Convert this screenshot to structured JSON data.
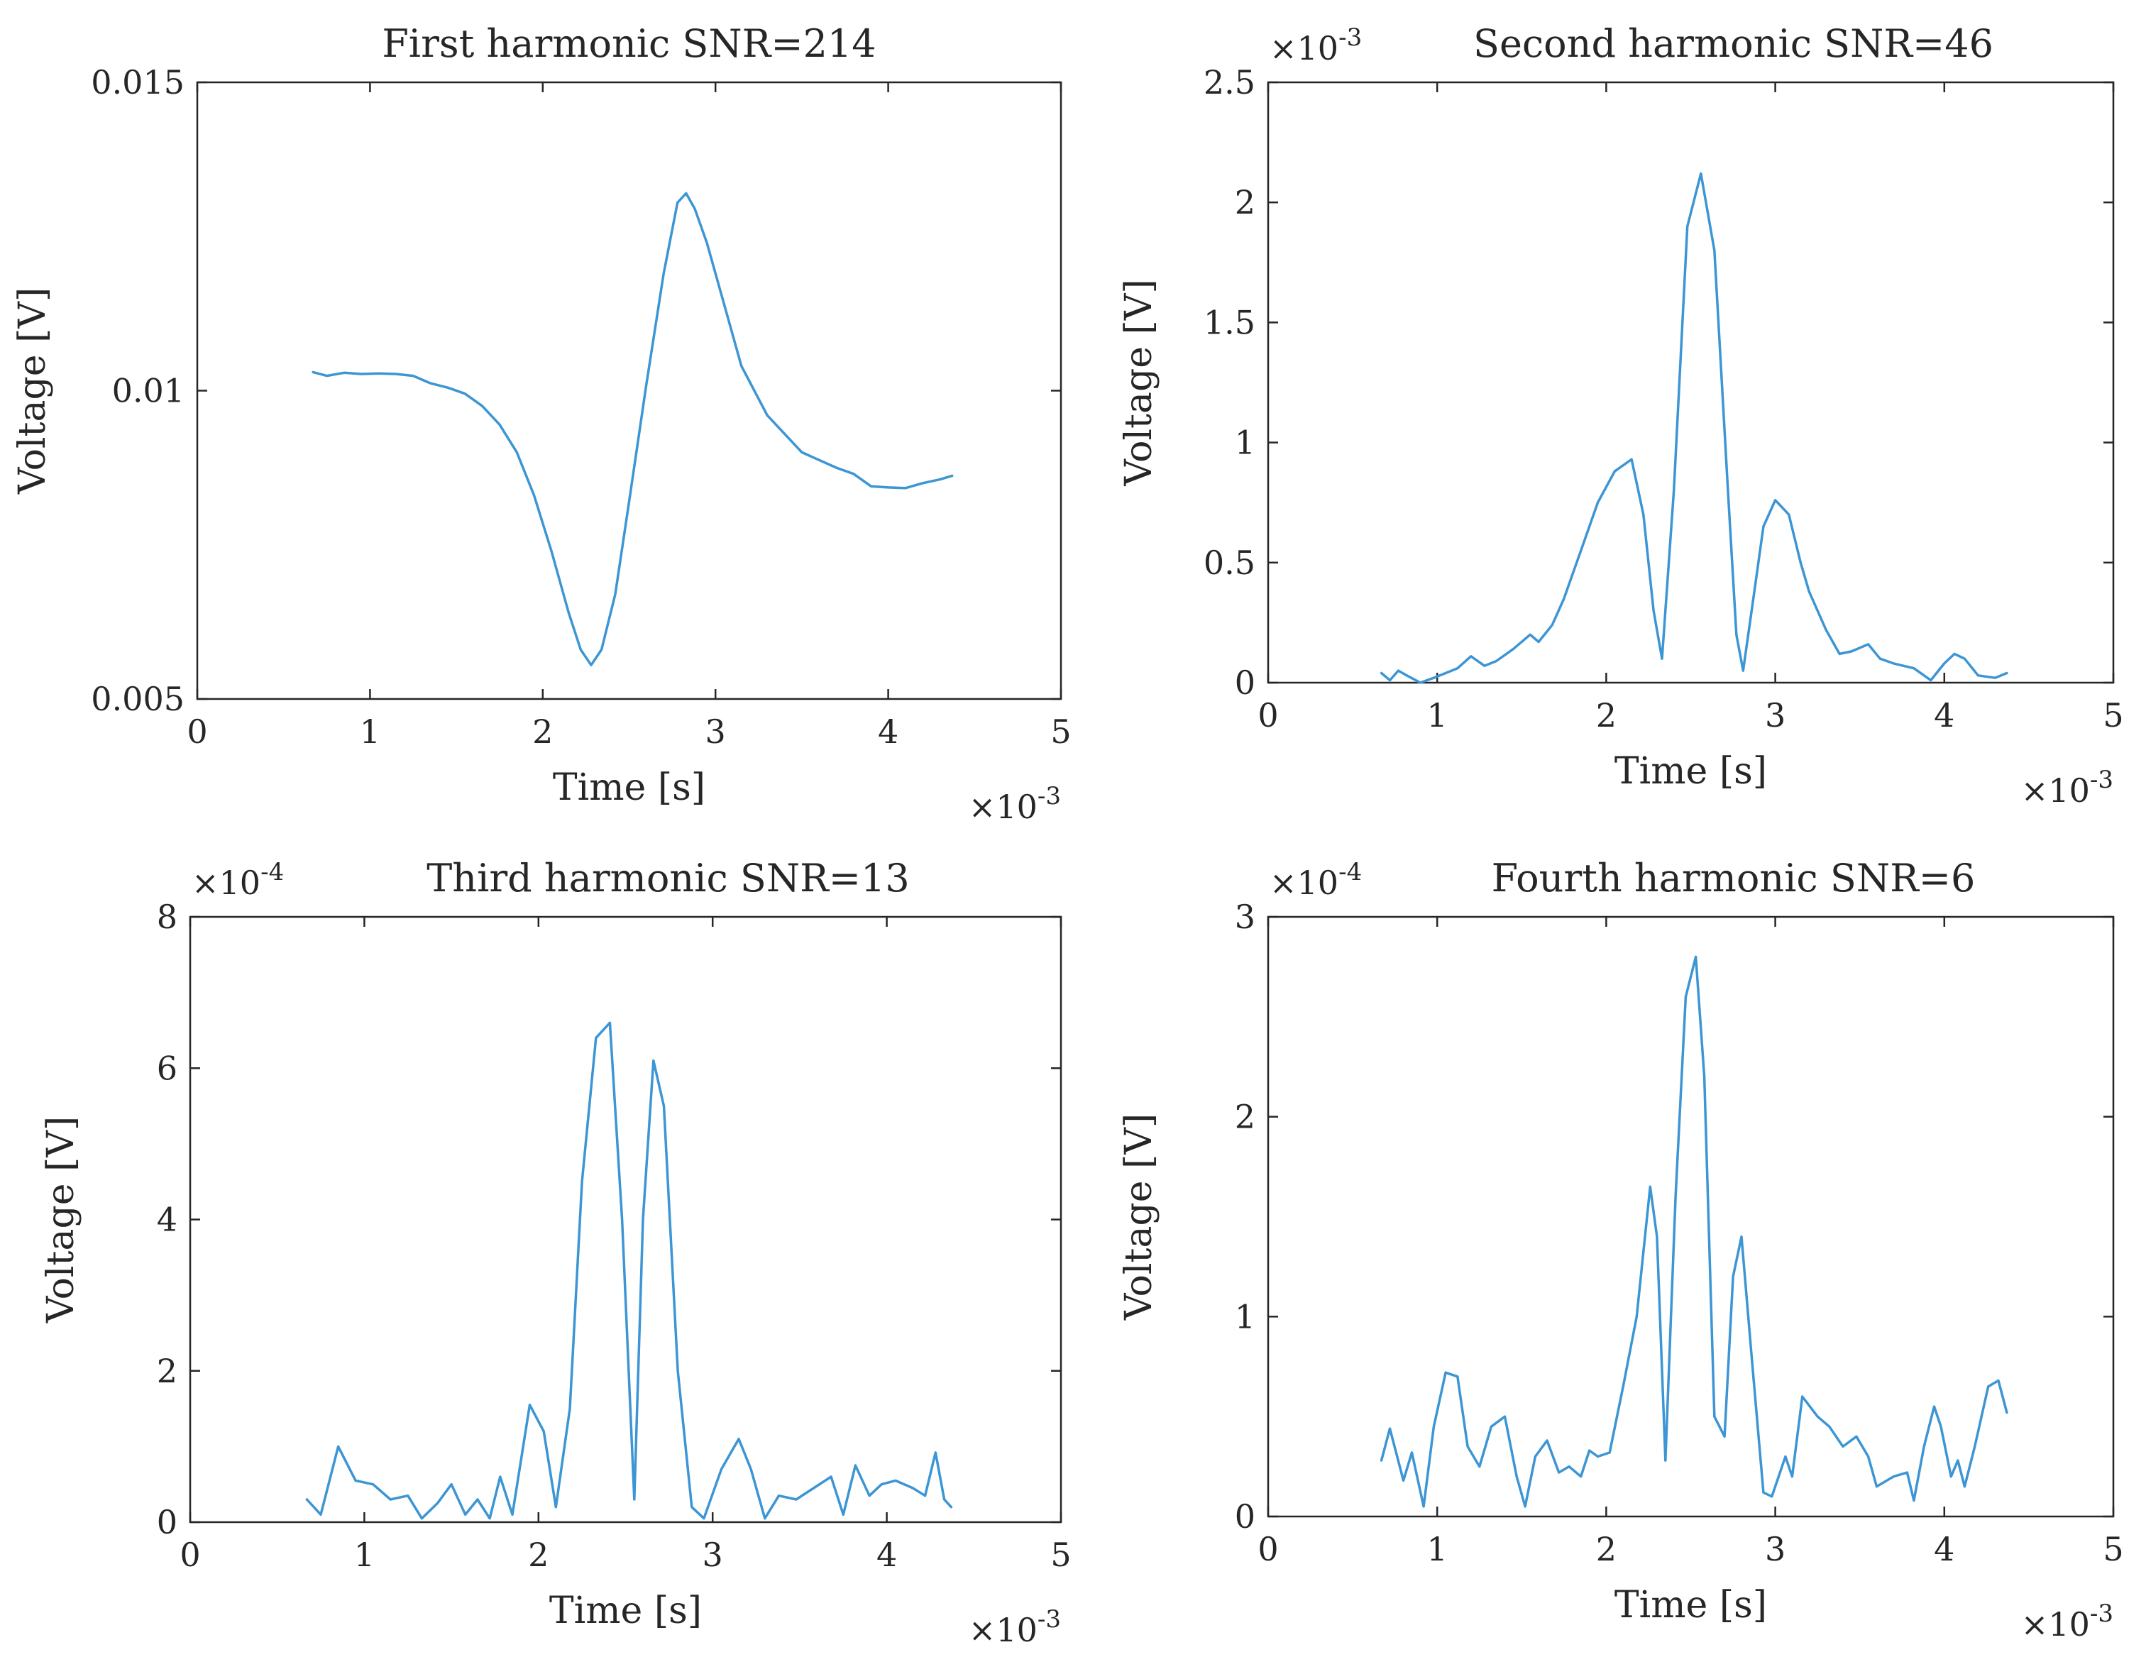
{
  "chart_data": [
    {
      "type": "line",
      "title": "First harmonic SNR=214",
      "xlabel": "Time [s]",
      "ylabel": "Voltage [V]",
      "xlim": [
        0,
        5
      ],
      "ylim": [
        0.005,
        0.015
      ],
      "xticks": [
        0,
        1,
        2,
        3,
        4,
        5
      ],
      "xtick_labels": [
        "0",
        "1",
        "2",
        "3",
        "4",
        "5"
      ],
      "yticks": [
        0.005,
        0.01,
        0.015
      ],
      "ytick_labels": [
        "0.005",
        "0.01",
        "0.015"
      ],
      "x_multiplier": "×10",
      "x_exponent": "-3",
      "y_multiplier": "",
      "y_exponent": "",
      "color": "#3c95d4",
      "series": [
        {
          "name": "First harmonic",
          "x": [
            0.67,
            0.75,
            0.85,
            0.95,
            1.05,
            1.15,
            1.25,
            1.35,
            1.45,
            1.55,
            1.65,
            1.75,
            1.85,
            1.95,
            2.05,
            2.15,
            2.22,
            2.28,
            2.34,
            2.42,
            2.5,
            2.6,
            2.7,
            2.78,
            2.83,
            2.88,
            2.95,
            3.05,
            3.15,
            3.3,
            3.5,
            3.7,
            3.8,
            3.9,
            4.0,
            4.1,
            4.2,
            4.3,
            4.37
          ],
          "y": [
            0.0103,
            0.01024,
            0.01029,
            0.01027,
            0.01028,
            0.01027,
            0.01024,
            0.01012,
            0.01005,
            0.00995,
            0.00975,
            0.00945,
            0.009,
            0.0083,
            0.0074,
            0.0064,
            0.0058,
            0.00555,
            0.0058,
            0.0067,
            0.0082,
            0.0101,
            0.0119,
            0.01305,
            0.0132,
            0.01295,
            0.0124,
            0.0114,
            0.0104,
            0.0096,
            0.009,
            0.00875,
            0.00865,
            0.00845,
            0.00843,
            0.00842,
            0.0085,
            0.00856,
            0.00862
          ]
        }
      ]
    },
    {
      "type": "line",
      "title": "Second harmonic SNR=46",
      "xlabel": "Time [s]",
      "ylabel": "Voltage [V]",
      "xlim": [
        0,
        5
      ],
      "ylim": [
        0,
        2.5
      ],
      "xticks": [
        0,
        1,
        2,
        3,
        4,
        5
      ],
      "xtick_labels": [
        "0",
        "1",
        "2",
        "3",
        "4",
        "5"
      ],
      "yticks": [
        0,
        0.5,
        1,
        1.5,
        2,
        2.5
      ],
      "ytick_labels": [
        "0",
        "0.5",
        "1",
        "1.5",
        "2",
        "2.5"
      ],
      "x_multiplier": "×10",
      "x_exponent": "-3",
      "y_multiplier": "×10",
      "y_exponent": "-3",
      "color": "#3c95d4",
      "series": [
        {
          "name": "Second harmonic",
          "x": [
            0.67,
            0.72,
            0.77,
            0.82,
            0.9,
            0.98,
            1.05,
            1.12,
            1.2,
            1.28,
            1.35,
            1.45,
            1.55,
            1.6,
            1.68,
            1.75,
            1.85,
            1.95,
            2.05,
            2.15,
            2.22,
            2.28,
            2.33,
            2.4,
            2.48,
            2.56,
            2.64,
            2.72,
            2.77,
            2.81,
            2.86,
            2.93,
            3.0,
            3.08,
            3.15,
            3.2,
            3.3,
            3.38,
            3.45,
            3.55,
            3.62,
            3.7,
            3.82,
            3.92,
            4.0,
            4.06,
            4.12,
            4.2,
            4.3,
            4.37
          ],
          "y": [
            0.04,
            0.01,
            0.05,
            0.03,
            0.0,
            0.02,
            0.04,
            0.06,
            0.11,
            0.07,
            0.09,
            0.14,
            0.2,
            0.17,
            0.24,
            0.35,
            0.55,
            0.75,
            0.88,
            0.93,
            0.7,
            0.3,
            0.1,
            0.8,
            1.9,
            2.12,
            1.8,
            0.8,
            0.2,
            0.05,
            0.3,
            0.65,
            0.76,
            0.7,
            0.5,
            0.38,
            0.22,
            0.12,
            0.13,
            0.16,
            0.1,
            0.08,
            0.06,
            0.01,
            0.08,
            0.12,
            0.1,
            0.03,
            0.02,
            0.04
          ]
        }
      ]
    },
    {
      "type": "line",
      "title": "Third harmonic SNR=13",
      "xlabel": "Time [s]",
      "ylabel": "Voltage [V]",
      "xlim": [
        0,
        5
      ],
      "ylim": [
        0,
        8
      ],
      "xticks": [
        0,
        1,
        2,
        3,
        4,
        5
      ],
      "xtick_labels": [
        "0",
        "1",
        "2",
        "3",
        "4",
        "5"
      ],
      "yticks": [
        0,
        2,
        4,
        6,
        8
      ],
      "ytick_labels": [
        "0",
        "2",
        "4",
        "6",
        "8"
      ],
      "x_multiplier": "×10",
      "x_exponent": "-3",
      "y_multiplier": "×10",
      "y_exponent": "-4",
      "color": "#3c95d4",
      "series": [
        {
          "name": "Third harmonic",
          "x": [
            0.67,
            0.75,
            0.85,
            0.95,
            1.05,
            1.15,
            1.25,
            1.33,
            1.42,
            1.5,
            1.58,
            1.65,
            1.72,
            1.78,
            1.85,
            1.95,
            2.03,
            2.1,
            2.18,
            2.25,
            2.33,
            2.41,
            2.48,
            2.55,
            2.6,
            2.66,
            2.72,
            2.8,
            2.88,
            2.95,
            3.05,
            3.15,
            3.22,
            3.3,
            3.38,
            3.48,
            3.58,
            3.68,
            3.75,
            3.82,
            3.9,
            3.97,
            4.05,
            4.15,
            4.22,
            4.28,
            4.33,
            4.37
          ],
          "y": [
            0.3,
            0.1,
            1.0,
            0.55,
            0.5,
            0.3,
            0.35,
            0.05,
            0.25,
            0.5,
            0.1,
            0.3,
            0.05,
            0.6,
            0.1,
            1.55,
            1.2,
            0.2,
            1.5,
            4.5,
            6.4,
            6.6,
            4.0,
            0.3,
            4.0,
            6.1,
            5.5,
            2.0,
            0.2,
            0.05,
            0.7,
            1.1,
            0.7,
            0.05,
            0.35,
            0.3,
            0.45,
            0.6,
            0.1,
            0.75,
            0.35,
            0.5,
            0.55,
            0.45,
            0.35,
            0.92,
            0.3,
            0.2
          ]
        }
      ]
    },
    {
      "type": "line",
      "title": "Fourth harmonic SNR=6",
      "xlabel": "Time [s]",
      "ylabel": "Voltage [V]",
      "xlim": [
        0,
        5
      ],
      "ylim": [
        0,
        3
      ],
      "xticks": [
        0,
        1,
        2,
        3,
        4,
        5
      ],
      "xtick_labels": [
        "0",
        "1",
        "2",
        "3",
        "4",
        "5"
      ],
      "yticks": [
        0,
        1,
        2,
        3
      ],
      "ytick_labels": [
        "0",
        "1",
        "2",
        "3"
      ],
      "x_multiplier": "×10",
      "x_exponent": "-3",
      "y_multiplier": "×10",
      "y_exponent": "-4",
      "color": "#3c95d4",
      "series": [
        {
          "name": "Fourth harmonic",
          "x": [
            0.67,
            0.72,
            0.8,
            0.85,
            0.92,
            0.98,
            1.05,
            1.12,
            1.18,
            1.25,
            1.32,
            1.4,
            1.47,
            1.52,
            1.58,
            1.65,
            1.72,
            1.78,
            1.85,
            1.9,
            1.95,
            2.02,
            2.1,
            2.18,
            2.26,
            2.3,
            2.35,
            2.41,
            2.47,
            2.53,
            2.58,
            2.64,
            2.7,
            2.75,
            2.8,
            2.86,
            2.93,
            2.98,
            3.06,
            3.1,
            3.16,
            3.25,
            3.32,
            3.4,
            3.48,
            3.55,
            3.6,
            3.7,
            3.78,
            3.82,
            3.88,
            3.94,
            3.98,
            4.04,
            4.08,
            4.12,
            4.18,
            4.26,
            4.32,
            4.37
          ],
          "y": [
            0.28,
            0.44,
            0.18,
            0.32,
            0.05,
            0.45,
            0.72,
            0.7,
            0.35,
            0.25,
            0.45,
            0.5,
            0.2,
            0.05,
            0.3,
            0.38,
            0.22,
            0.25,
            0.2,
            0.33,
            0.3,
            0.32,
            0.65,
            1.0,
            1.65,
            1.4,
            0.28,
            1.6,
            2.6,
            2.8,
            2.2,
            0.5,
            0.4,
            1.2,
            1.4,
            0.8,
            0.12,
            0.1,
            0.3,
            0.2,
            0.6,
            0.5,
            0.45,
            0.35,
            0.4,
            0.3,
            0.15,
            0.2,
            0.22,
            0.08,
            0.35,
            0.55,
            0.45,
            0.2,
            0.28,
            0.15,
            0.35,
            0.65,
            0.68,
            0.52
          ]
        }
      ]
    }
  ]
}
